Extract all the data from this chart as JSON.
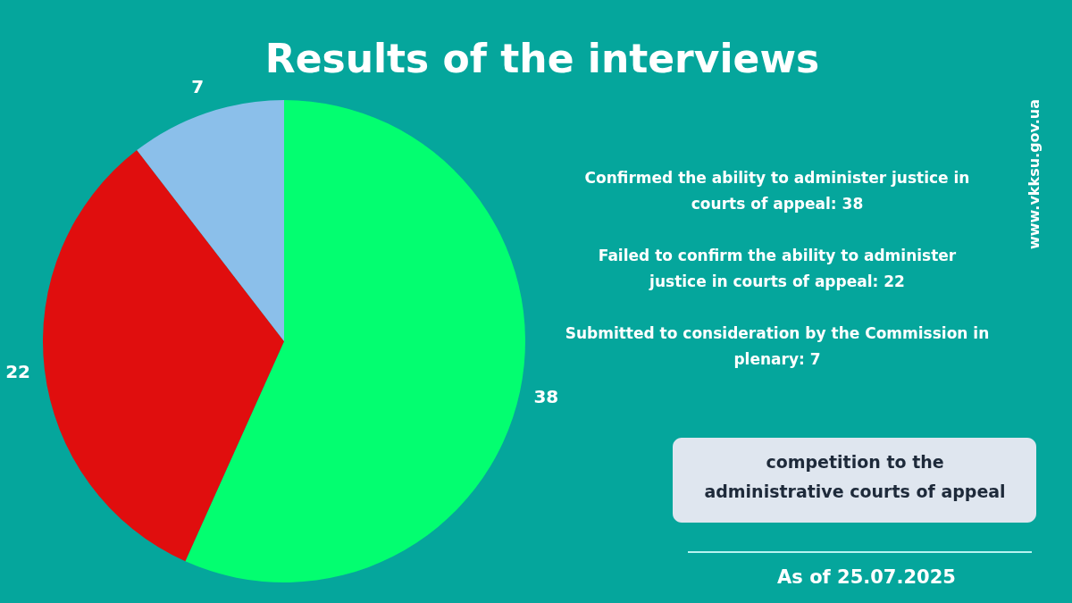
{
  "chart_data": {
    "type": "pie",
    "title": "Results of the interviews",
    "categories": [
      null,
      null,
      null
    ],
    "values": [
      38,
      22,
      7
    ],
    "colors": [
      "#03fe70",
      "#e00e0e",
      "#8bbfea"
    ],
    "data_labels": true,
    "annotations": [
      "Confirmed the ability to administer justice in courts of appeal: 38",
      "Failed to confirm the ability to administer justice in courts of appeal: 22",
      "Submitted to consideration by the Commission in plenary: 7",
      "competition to the administrative courts of appeal",
      "As of 25.07.2025",
      "www.vkksu.gov.ua"
    ]
  }
}
